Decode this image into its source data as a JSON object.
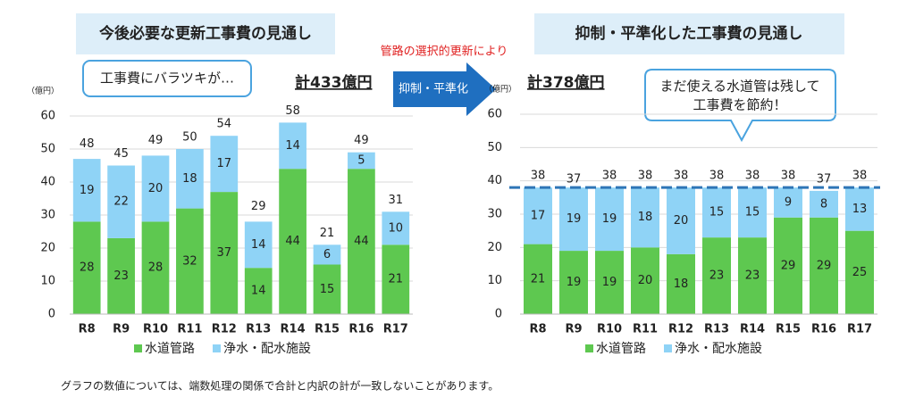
{
  "chart_data": [
    {
      "type": "bar",
      "stacked": true,
      "title": "今後必要な更新工事費の見通し",
      "callout": [
        "工事費にバラツキが…"
      ],
      "total_label": "計433億円",
      "y_unit": "（億円）",
      "categories": [
        "R8",
        "R9",
        "R10",
        "R11",
        "R12",
        "R13",
        "R14",
        "R15",
        "R16",
        "R17"
      ],
      "series": [
        {
          "name": "水道管路",
          "color": "#5ec850",
          "values": [
            28,
            23,
            28,
            32,
            37,
            14,
            44,
            15,
            44,
            21
          ]
        },
        {
          "name": "浄水・配水施設",
          "color": "#8fd3f6",
          "values": [
            19,
            22,
            20,
            18,
            17,
            14,
            14,
            6,
            5,
            10
          ]
        }
      ],
      "totals": [
        48,
        45,
        49,
        50,
        54,
        29,
        58,
        21,
        49,
        31
      ],
      "ylim": [
        0,
        60
      ],
      "yticks": [
        0,
        10,
        20,
        30,
        40,
        50,
        60
      ],
      "grid": true
    },
    {
      "type": "bar",
      "stacked": true,
      "title": "抑制・平準化した工事費の見通し",
      "callout": [
        "まだ使える水道管は残して",
        "工事費を節約！"
      ],
      "total_label": "計378億円",
      "y_unit": "（億円）",
      "categories": [
        "R8",
        "R9",
        "R10",
        "R11",
        "R12",
        "R13",
        "R14",
        "R15",
        "R16",
        "R17"
      ],
      "series": [
        {
          "name": "水道管路",
          "color": "#5ec850",
          "values": [
            21,
            19,
            19,
            20,
            18,
            23,
            23,
            29,
            29,
            25
          ]
        },
        {
          "name": "浄水・配水施設",
          "color": "#8fd3f6",
          "values": [
            17,
            19,
            19,
            18,
            20,
            15,
            15,
            9,
            8,
            13
          ]
        }
      ],
      "totals": [
        38,
        37,
        38,
        38,
        38,
        38,
        38,
        38,
        37,
        38
      ],
      "reference_line": 38,
      "reference_color": "#2e75b6",
      "ylim": [
        0,
        60
      ],
      "yticks": [
        0,
        10,
        20,
        30,
        40,
        50,
        60
      ],
      "grid": true
    }
  ],
  "arrow": {
    "label": "抑制・平準化",
    "note": "管路の選択的更新により"
  },
  "footnote": "グラフの数値については、端数処理の関係で合計と内訳の計が一致しないことがあります。"
}
